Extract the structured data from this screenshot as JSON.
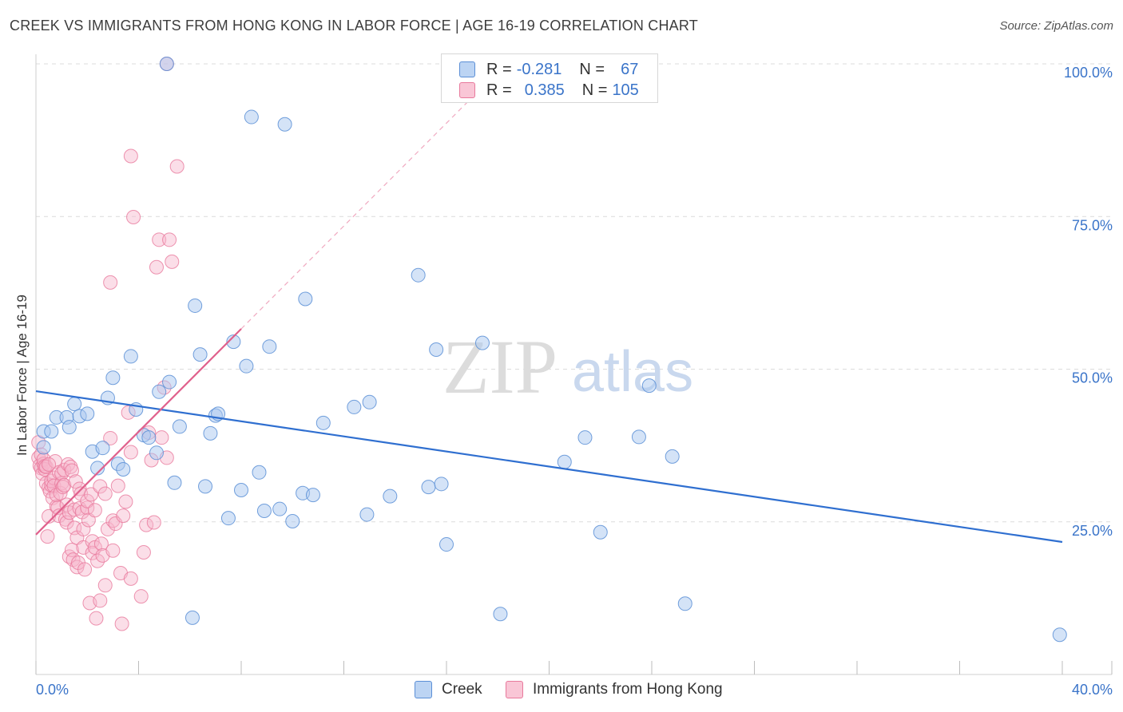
{
  "title": "CREEK VS IMMIGRANTS FROM HONG KONG IN LABOR FORCE | AGE 16-19 CORRELATION CHART",
  "source": "Source: ZipAtlas.com",
  "watermark": {
    "zip": "ZIP",
    "atlas": "atlas"
  },
  "legend": {
    "creek": {
      "r_label": "R =",
      "r_value": "-0.281",
      "n_label": "N =",
      "n_value": "67"
    },
    "hk": {
      "r_label": "R =",
      "r_value": "0.385",
      "n_label": "N =",
      "n_value": "105"
    }
  },
  "bottom_legend": {
    "creek": "Creek",
    "hk": "Immigrants from Hong Kong"
  },
  "colors": {
    "creek_fill": "#a9c8f0",
    "creek_stroke": "#5b8fd6",
    "creek_line": "#2f6fd0",
    "hk_fill": "#f7b6cb",
    "hk_stroke": "#e8799c",
    "hk_line": "#e0608c",
    "tick_label": "#3a74c9",
    "grid": "#dcdcdc"
  },
  "chart_data": {
    "type": "scatter",
    "title": "CREEK VS IMMIGRANTS FROM HONG KONG IN LABOR FORCE | AGE 16-19 CORRELATION CHART",
    "xlabel": "",
    "ylabel": "In Labor Force | Age 16-19",
    "xlim": [
      0,
      40
    ],
    "ylim": [
      0,
      100
    ],
    "x_tick_labels": [
      "0.0%",
      "40.0%"
    ],
    "y_ticks": [
      25,
      50,
      75,
      100
    ],
    "y_tick_labels": [
      "25.0%",
      "50.0%",
      "75.0%",
      "100.0%"
    ],
    "grid": true,
    "series": [
      {
        "name": "Creek",
        "R": -0.281,
        "N": 67,
        "trend": {
          "x": [
            0,
            40
          ],
          "y": [
            46.4,
            21.7
          ]
        },
        "points": [
          [
            0.3,
            37.2
          ],
          [
            0.3,
            39.8
          ],
          [
            0.6,
            39.8
          ],
          [
            0.8,
            42.1
          ],
          [
            1.2,
            42.1
          ],
          [
            1.3,
            40.5
          ],
          [
            1.5,
            44.3
          ],
          [
            1.7,
            42.3
          ],
          [
            2.0,
            42.7
          ],
          [
            2.2,
            36.5
          ],
          [
            2.4,
            33.8
          ],
          [
            2.6,
            37.1
          ],
          [
            2.8,
            45.3
          ],
          [
            3.0,
            48.6
          ],
          [
            3.2,
            34.5
          ],
          [
            3.4,
            33.6
          ],
          [
            3.7,
            52.1
          ],
          [
            3.9,
            43.4
          ],
          [
            4.2,
            39.2
          ],
          [
            4.4,
            38.8
          ],
          [
            4.7,
            36.3
          ],
          [
            4.8,
            46.3
          ],
          [
            5.1,
            100
          ],
          [
            5.2,
            47.9
          ],
          [
            5.4,
            31.4
          ],
          [
            5.6,
            40.6
          ],
          [
            6.1,
            9.3
          ],
          [
            6.2,
            60.4
          ],
          [
            6.4,
            52.4
          ],
          [
            6.6,
            30.8
          ],
          [
            6.8,
            39.5
          ],
          [
            7.0,
            42.4
          ],
          [
            7.1,
            42.7
          ],
          [
            7.5,
            25.6
          ],
          [
            7.7,
            54.5
          ],
          [
            8.0,
            30.2
          ],
          [
            8.2,
            50.5
          ],
          [
            8.4,
            91.3
          ],
          [
            8.7,
            33.1
          ],
          [
            8.9,
            26.8
          ],
          [
            9.1,
            53.7
          ],
          [
            9.5,
            27.1
          ],
          [
            9.7,
            90.1
          ],
          [
            10.0,
            25.1
          ],
          [
            10.4,
            29.7
          ],
          [
            10.5,
            61.5
          ],
          [
            10.8,
            29.4
          ],
          [
            11.2,
            41.2
          ],
          [
            12.4,
            43.8
          ],
          [
            12.9,
            26.2
          ],
          [
            13.0,
            44.6
          ],
          [
            13.8,
            29.2
          ],
          [
            14.9,
            65.4
          ],
          [
            15.3,
            30.7
          ],
          [
            15.6,
            53.2
          ],
          [
            15.8,
            31.2
          ],
          [
            16.0,
            21.3
          ],
          [
            17.4,
            54.3
          ],
          [
            18.1,
            9.9
          ],
          [
            20.6,
            34.8
          ],
          [
            21.4,
            38.8
          ],
          [
            22.0,
            23.3
          ],
          [
            23.5,
            38.9
          ],
          [
            23.9,
            47.3
          ],
          [
            24.8,
            35.7
          ],
          [
            25.3,
            11.6
          ],
          [
            39.9,
            6.5
          ]
        ]
      },
      {
        "name": "Immigrants from Hong Kong",
        "R": 0.385,
        "N": 105,
        "trend": {
          "x": [
            0,
            8
          ],
          "y": [
            22.9,
            56.6
          ]
        },
        "points": [
          [
            0.1,
            38.0
          ],
          [
            0.1,
            35.5
          ],
          [
            0.15,
            34.2
          ],
          [
            0.2,
            36.0
          ],
          [
            0.2,
            33.8
          ],
          [
            0.25,
            32.9
          ],
          [
            0.3,
            34.5
          ],
          [
            0.3,
            35.2
          ],
          [
            0.35,
            33.6
          ],
          [
            0.35,
            34.1
          ],
          [
            0.4,
            34.0
          ],
          [
            0.4,
            31.3
          ],
          [
            0.45,
            22.6
          ],
          [
            0.5,
            25.9
          ],
          [
            0.5,
            30.6
          ],
          [
            0.55,
            30.0
          ],
          [
            0.6,
            31.0
          ],
          [
            0.6,
            31.7
          ],
          [
            0.65,
            28.9
          ],
          [
            0.7,
            32.2
          ],
          [
            0.7,
            30.9
          ],
          [
            0.75,
            34.9
          ],
          [
            0.8,
            27.5
          ],
          [
            0.8,
            29.4
          ],
          [
            0.85,
            27.3
          ],
          [
            0.9,
            33.1
          ],
          [
            0.9,
            26.0
          ],
          [
            0.95,
            29.7
          ],
          [
            1.0,
            31.3
          ],
          [
            1.0,
            32.9
          ],
          [
            1.05,
            30.7
          ],
          [
            1.1,
            33.5
          ],
          [
            1.1,
            31.0
          ],
          [
            1.15,
            25.4
          ],
          [
            1.2,
            24.9
          ],
          [
            1.2,
            27.8
          ],
          [
            1.25,
            34.4
          ],
          [
            1.3,
            26.5
          ],
          [
            1.3,
            19.3
          ],
          [
            1.35,
            34.0
          ],
          [
            1.4,
            33.4
          ],
          [
            1.4,
            20.4
          ],
          [
            1.45,
            18.8
          ],
          [
            1.5,
            24.0
          ],
          [
            1.5,
            27.0
          ],
          [
            1.55,
            31.6
          ],
          [
            1.6,
            22.4
          ],
          [
            1.6,
            17.6
          ],
          [
            1.65,
            18.3
          ],
          [
            1.7,
            27.2
          ],
          [
            1.7,
            30.4
          ],
          [
            1.75,
            29.6
          ],
          [
            1.8,
            26.6
          ],
          [
            1.85,
            23.8
          ],
          [
            1.85,
            20.8
          ],
          [
            1.9,
            17.2
          ],
          [
            2.0,
            27.3
          ],
          [
            2.0,
            28.4
          ],
          [
            2.05,
            25.3
          ],
          [
            2.1,
            11.7
          ],
          [
            2.15,
            29.5
          ],
          [
            2.2,
            21.8
          ],
          [
            2.2,
            19.9
          ],
          [
            2.3,
            20.8
          ],
          [
            2.3,
            26.9
          ],
          [
            2.35,
            9.2
          ],
          [
            2.4,
            18.6
          ],
          [
            2.5,
            30.8
          ],
          [
            2.5,
            12.1
          ],
          [
            2.55,
            21.4
          ],
          [
            2.6,
            19.5
          ],
          [
            2.7,
            14.6
          ],
          [
            2.7,
            29.6
          ],
          [
            2.8,
            23.8
          ],
          [
            2.9,
            38.7
          ],
          [
            3.0,
            25.2
          ],
          [
            3.0,
            20.3
          ],
          [
            3.1,
            24.7
          ],
          [
            3.2,
            30.9
          ],
          [
            3.3,
            16.6
          ],
          [
            3.35,
            8.3
          ],
          [
            3.4,
            26.0
          ],
          [
            3.5,
            28.3
          ],
          [
            3.6,
            42.9
          ],
          [
            3.7,
            36.4
          ],
          [
            3.7,
            15.7
          ],
          [
            3.7,
            84.9
          ],
          [
            3.8,
            74.9
          ],
          [
            4.1,
            12.8
          ],
          [
            4.2,
            20.0
          ],
          [
            4.3,
            24.5
          ],
          [
            4.4,
            39.6
          ],
          [
            4.5,
            35.1
          ],
          [
            4.6,
            24.9
          ],
          [
            4.7,
            66.7
          ],
          [
            4.8,
            71.2
          ],
          [
            4.9,
            38.8
          ],
          [
            5.0,
            47.0
          ],
          [
            5.1,
            35.5
          ],
          [
            5.1,
            100.0
          ],
          [
            5.2,
            71.2
          ],
          [
            5.3,
            67.6
          ],
          [
            5.5,
            83.2
          ],
          [
            2.9,
            64.2
          ],
          [
            0.5,
            34.4
          ]
        ]
      }
    ]
  }
}
